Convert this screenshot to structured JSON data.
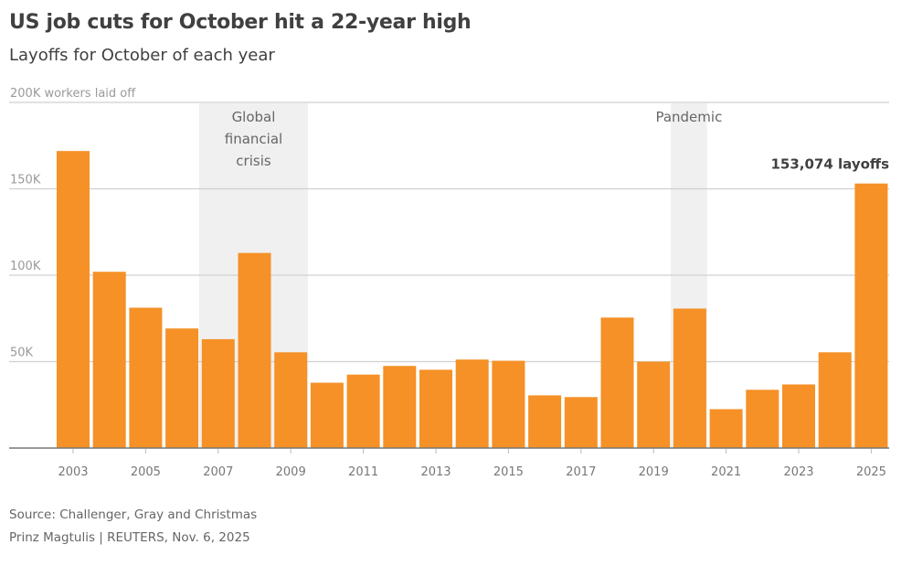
{
  "chart_data": {
    "type": "bar",
    "title": "US job cuts for October hit a 22-year high",
    "subtitle": "Layoffs for October of each year",
    "ylabel": "200K workers laid off",
    "xlabel": "",
    "ylim": [
      0,
      200000
    ],
    "yticks": [
      {
        "value": 50000,
        "label": "50K"
      },
      {
        "value": 100000,
        "label": "100K"
      },
      {
        "value": 150000,
        "label": "150K"
      },
      {
        "value": 200000,
        "label": "200K workers laid off"
      }
    ],
    "grid": true,
    "categories": [
      "2003",
      "2004",
      "2005",
      "2006",
      "2007",
      "2008",
      "2009",
      "2010",
      "2011",
      "2012",
      "2013",
      "2014",
      "2015",
      "2016",
      "2017",
      "2018",
      "2019",
      "2020",
      "2021",
      "2022",
      "2023",
      "2024",
      "2025"
    ],
    "xtick_labels": [
      "2003",
      "2005",
      "2007",
      "2009",
      "2011",
      "2013",
      "2015",
      "2017",
      "2019",
      "2021",
      "2023",
      "2025"
    ],
    "values": [
      171874,
      102000,
      81200,
      69200,
      63000,
      112900,
      55400,
      37800,
      42500,
      47500,
      45300,
      51200,
      50500,
      30500,
      29500,
      75500,
      50000,
      80700,
      22500,
      33700,
      36800,
      55400,
      153074
    ],
    "bar_color": "#f59127",
    "shaded_periods": [
      {
        "label": "Global financial crisis",
        "lines": [
          "Global",
          "financial",
          "crisis"
        ],
        "start": "2007",
        "end": "2009"
      },
      {
        "label": "Pandemic",
        "lines": [
          "Pandemic"
        ],
        "start": "2020",
        "end": "2020"
      }
    ],
    "annotations": [
      {
        "category": "2025",
        "text": "153,074 layoffs"
      }
    ]
  },
  "footer": {
    "source": "Source: Challenger, Gray and Christmas",
    "credit": "Prinz Magtulis | REUTERS, Nov. 6, 2025"
  }
}
